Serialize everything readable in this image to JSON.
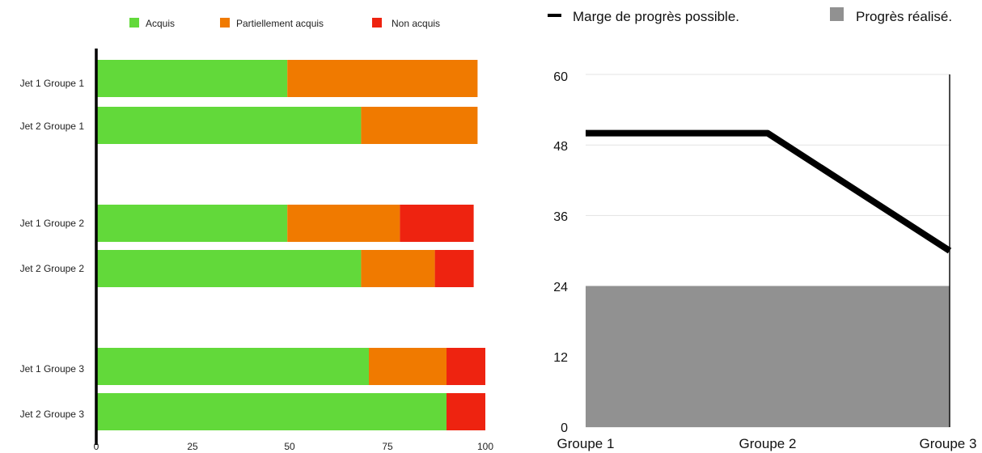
{
  "chart_data": [
    {
      "type": "bar",
      "orientation": "horizontal",
      "stacked": true,
      "categories": [
        "Jet 1 Groupe 1",
        "Jet 2 Groupe 1",
        "Jet 1 Groupe 2",
        "Jet 2 Groupe 2",
        "Jet 1 Groupe 3",
        "Jet 2 Groupe 3"
      ],
      "series": [
        {
          "name": "Acquis",
          "color": "#62d93a",
          "values": [
            49,
            68,
            49,
            68,
            70,
            90
          ]
        },
        {
          "name": "Partiellement acquis",
          "color": "#f07a00",
          "values": [
            49,
            30,
            29,
            19,
            20,
            0
          ]
        },
        {
          "name": "Non acquis",
          "color": "#ee2310",
          "values": [
            0,
            0,
            19,
            10,
            10,
            10
          ]
        }
      ],
      "xlim": [
        0,
        100
      ],
      "xticks": [
        "0",
        "25",
        "50",
        "75",
        "100"
      ],
      "legend_position": "top",
      "grid": false
    },
    {
      "type": "area",
      "categories": [
        "Groupe 1",
        "Groupe 2",
        "Groupe 3"
      ],
      "series": [
        {
          "name": "Marge de progrès possible.",
          "color": "#000000",
          "style": "line",
          "values": [
            50,
            50,
            30
          ]
        },
        {
          "name": "Progrès réalisé.",
          "color": "#919191",
          "style": "area",
          "values": [
            24,
            24,
            24
          ]
        }
      ],
      "ylim": [
        0,
        60
      ],
      "yticks": [
        "0",
        "12",
        "24",
        "36",
        "48",
        "60"
      ],
      "legend_position": "top",
      "grid": true
    }
  ]
}
